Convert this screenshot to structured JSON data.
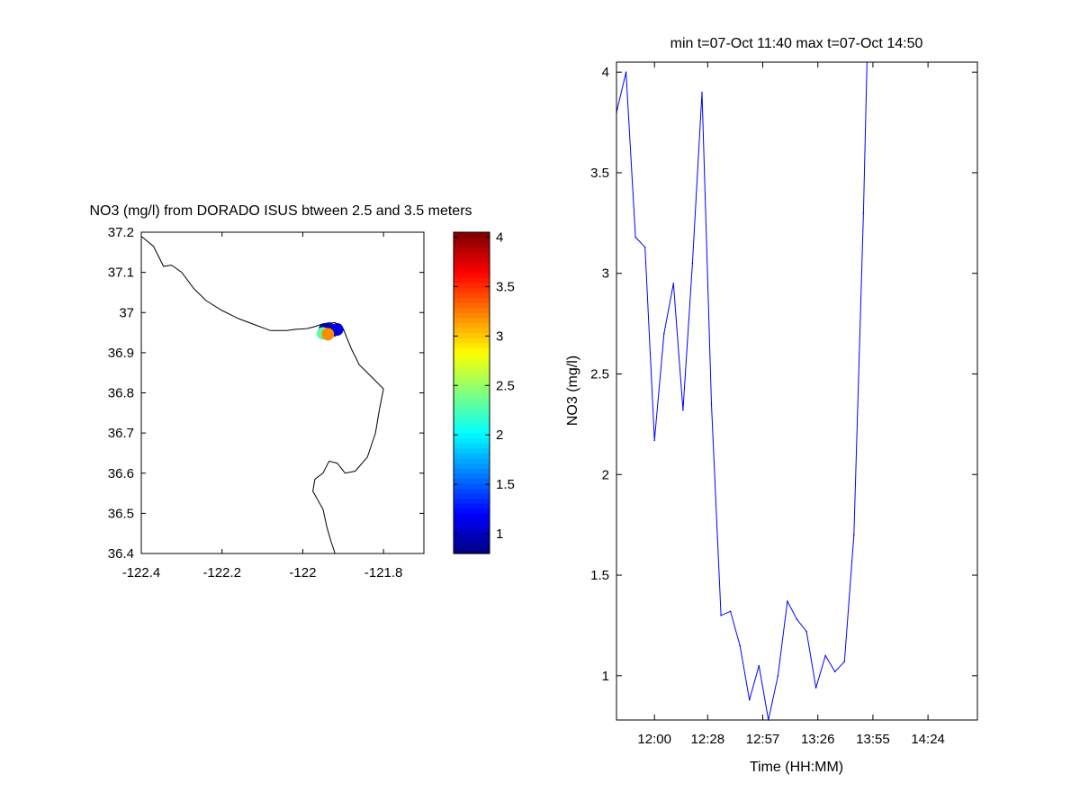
{
  "map_panel": {
    "title": "NO3 (mg/l) from DORADO ISUS btween 2.5 and 3.5 meters",
    "xlim": [
      -122.4,
      -121.7
    ],
    "ylim": [
      36.4,
      37.2
    ],
    "xticks": [
      -122.4,
      -122.2,
      -122.0,
      -121.8
    ],
    "xtick_labels": [
      "-122.4",
      "-122.2",
      "-122",
      "-121.8"
    ],
    "yticks": [
      36.4,
      36.5,
      36.6,
      36.7,
      36.8,
      36.9,
      37.0,
      37.1,
      37.2
    ],
    "ytick_labels": [
      "36.4",
      "36.5",
      "36.6",
      "36.7",
      "36.8",
      "36.9",
      "37",
      "37.1",
      "37.2"
    ],
    "coastline": [
      [
        -122.4,
        37.19
      ],
      [
        -122.37,
        37.165
      ],
      [
        -122.345,
        37.115
      ],
      [
        -122.325,
        37.118
      ],
      [
        -122.3,
        37.1
      ],
      [
        -122.27,
        37.06
      ],
      [
        -122.24,
        37.03
      ],
      [
        -122.2,
        37.005
      ],
      [
        -122.16,
        36.985
      ],
      [
        -122.12,
        36.97
      ],
      [
        -122.08,
        36.955
      ],
      [
        -122.04,
        36.955
      ],
      [
        -122.02,
        36.958
      ],
      [
        -121.99,
        36.96
      ],
      [
        -121.97,
        36.965
      ],
      [
        -121.95,
        36.972
      ],
      [
        -121.92,
        36.975
      ],
      [
        -121.9,
        36.96
      ],
      [
        -121.88,
        36.91
      ],
      [
        -121.86,
        36.87
      ],
      [
        -121.83,
        36.84
      ],
      [
        -121.8,
        36.81
      ],
      [
        -121.81,
        36.76
      ],
      [
        -121.82,
        36.7
      ],
      [
        -121.84,
        36.64
      ],
      [
        -121.87,
        36.605
      ],
      [
        -121.895,
        36.6
      ],
      [
        -121.915,
        36.625
      ],
      [
        -121.935,
        36.63
      ],
      [
        -121.95,
        36.6
      ],
      [
        -121.97,
        36.585
      ],
      [
        -121.975,
        36.555
      ],
      [
        -121.95,
        36.51
      ],
      [
        -121.94,
        36.465
      ],
      [
        -121.93,
        36.43
      ],
      [
        -121.92,
        36.4
      ]
    ],
    "points": [
      {
        "lon": -121.925,
        "lat": 36.955,
        "no3": 0.95
      },
      {
        "lon": -121.935,
        "lat": 36.96,
        "no3": 1.05
      },
      {
        "lon": -121.945,
        "lat": 36.958,
        "no3": 0.9
      },
      {
        "lon": -121.915,
        "lat": 36.958,
        "no3": 1.1
      },
      {
        "lon": -121.95,
        "lat": 36.948,
        "no3": 2.3
      },
      {
        "lon": -121.938,
        "lat": 36.946,
        "no3": 3.2
      }
    ]
  },
  "colorbar": {
    "cmin": 0.8,
    "cmax": 4.05,
    "ticks": [
      1,
      1.5,
      2,
      2.5,
      3,
      3.5,
      4
    ],
    "tick_labels": [
      "1",
      "1.5",
      "2",
      "2.5",
      "3",
      "3.5",
      "4"
    ]
  },
  "chart_data": {
    "type": "line",
    "title": "min t=07-Oct 11:40 max t=07-Oct 14:50",
    "xlabel": "Time (HH:MM)",
    "ylabel": "NO3 (mg/l)",
    "xlim": [
      "11:40",
      "14:50"
    ],
    "ylim": [
      0.78,
      4.05
    ],
    "xtick_labels": [
      "12:00",
      "12:28",
      "12:57",
      "13:26",
      "13:55",
      "14:24"
    ],
    "ytick_labels": [
      "1",
      "1.5",
      "2",
      "2.5",
      "3",
      "3.5",
      "4"
    ],
    "yticks": [
      1,
      1.5,
      2,
      2.5,
      3,
      3.5,
      4
    ],
    "line_color": "#0000ff",
    "series": [
      {
        "x": [
          "11:40",
          "11:45",
          "11:50",
          "11:55",
          "12:00",
          "12:05",
          "12:10",
          "12:15",
          "12:20",
          "12:25",
          "12:30",
          "12:35",
          "12:40",
          "12:45",
          "12:50",
          "12:55",
          "13:00",
          "13:05",
          "13:10",
          "13:15",
          "13:20",
          "13:25",
          "13:30",
          "13:35",
          "13:40",
          "13:45",
          "13:50",
          "13:52"
        ],
        "y": [
          3.8,
          4.0,
          3.18,
          3.13,
          2.17,
          2.7,
          2.95,
          2.32,
          3.05,
          3.9,
          2.35,
          1.3,
          1.32,
          1.15,
          0.88,
          1.05,
          0.78,
          1.0,
          1.37,
          1.28,
          1.22,
          0.94,
          1.1,
          1.02,
          1.07,
          1.7,
          3.3,
          4.1
        ]
      }
    ]
  }
}
